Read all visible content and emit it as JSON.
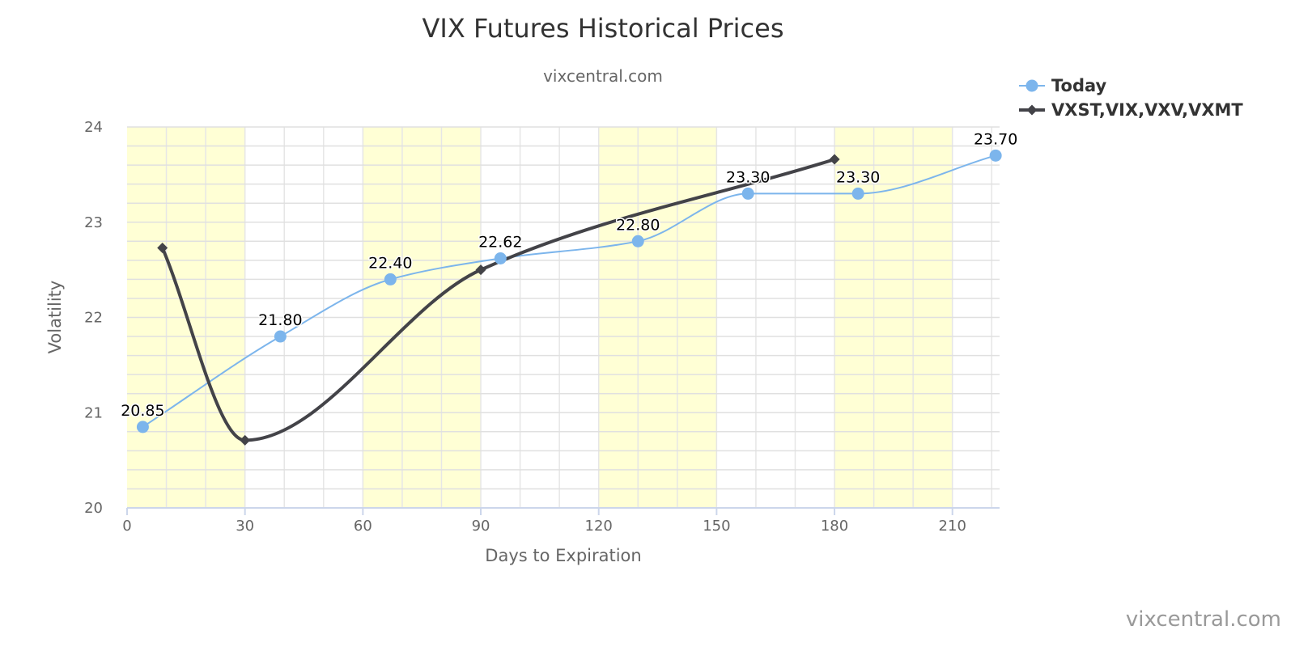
{
  "chart_data": {
    "type": "line",
    "title": "VIX Futures Historical Prices",
    "subtitle": "vixcentral.com",
    "xlabel": "Days to Expiration",
    "ylabel": "Volatility",
    "xlim": [
      0,
      222
    ],
    "ylim": [
      20,
      24
    ],
    "x_ticks": [
      0,
      30,
      60,
      90,
      120,
      150,
      180,
      210
    ],
    "y_ticks": [
      20,
      21,
      22,
      23,
      24
    ],
    "grid": true,
    "x_minor_step": 10,
    "y_minor_step": 0.2,
    "bands": [
      [
        0,
        30
      ],
      [
        60,
        90
      ],
      [
        120,
        150
      ],
      [
        180,
        210
      ]
    ],
    "band_color": "#ffffd5",
    "legend_position": "top-right",
    "series": [
      {
        "name": "Today",
        "color": "#7cb5ec",
        "marker": "circle",
        "x": [
          4,
          39,
          67,
          95,
          130,
          158,
          186,
          221
        ],
        "values": [
          20.85,
          21.8,
          22.4,
          22.62,
          22.8,
          23.3,
          23.3,
          23.7
        ],
        "labels": [
          "20.85",
          "21.80",
          "22.40",
          "22.62",
          "22.80",
          "23.30",
          "23.30",
          "23.70"
        ]
      },
      {
        "name": "VXST,VIX,VXV,VXMT",
        "color": "#434348",
        "marker": "diamond",
        "x": [
          9,
          30,
          90,
          180
        ],
        "values": [
          22.73,
          20.71,
          22.5,
          23.66
        ]
      }
    ]
  },
  "credit": "vixcentral.com"
}
